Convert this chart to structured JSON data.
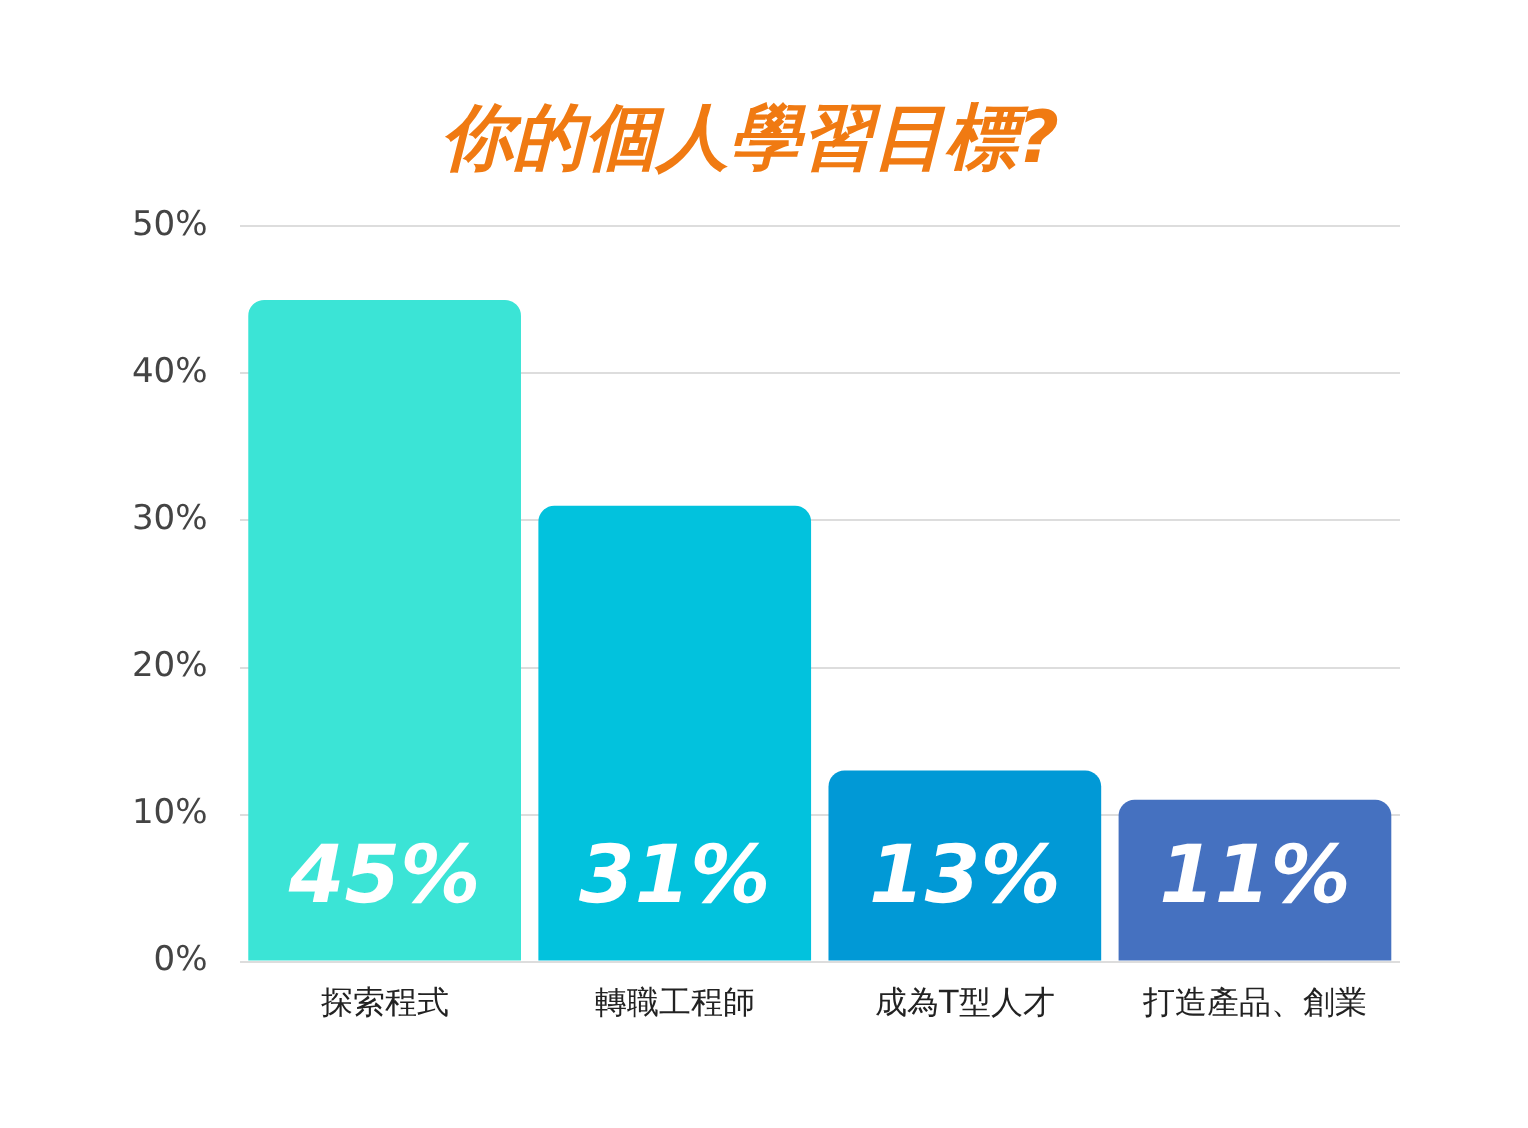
{
  "chart_data": {
    "type": "bar",
    "title": "你的個人學習目標?",
    "categories": [
      "探索程式",
      "轉職工程師",
      "成為T型人才",
      "打造產品、創業"
    ],
    "values": [
      45,
      31,
      13,
      11
    ],
    "colors": [
      "#3be4d6",
      "#02c2dd",
      "#0199d6",
      "#4571c0"
    ],
    "value_labels": [
      "45%",
      "31%",
      "13%",
      "11%"
    ],
    "ylim": [
      0,
      50
    ],
    "yticks": [
      {
        "value": 0,
        "label": "0%"
      },
      {
        "value": 10,
        "label": "10%"
      },
      {
        "value": 20,
        "label": "20%"
      },
      {
        "value": 30,
        "label": "30%"
      },
      {
        "value": 40,
        "label": "40%"
      },
      {
        "value": 50,
        "label": "50%"
      }
    ],
    "grid": "y",
    "legend": false
  }
}
